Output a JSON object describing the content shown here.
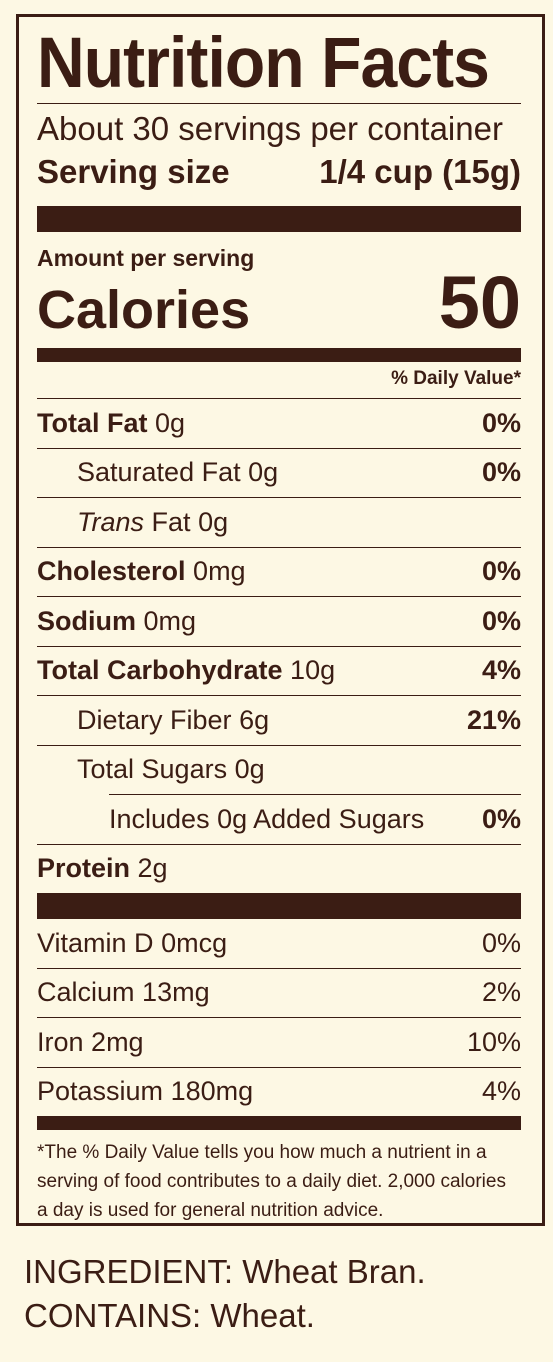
{
  "label": {
    "title": "Nutrition Facts",
    "servings_per_container": "About 30 servings per container",
    "serving_size_label": "Serving size",
    "serving_size_value": "1/4 cup (15g)",
    "amount_per_serving": "Amount per serving",
    "calories_label": "Calories",
    "calories_value": "50",
    "daily_value_header": "% Daily Value*",
    "nutrients": [
      {
        "name": "Total Fat",
        "amount": "0g",
        "dv": "0%"
      },
      {
        "name": "Saturated Fat",
        "amount": "0g",
        "dv": "0%"
      },
      {
        "name_italic": "Trans",
        "name": "Fat",
        "amount": "0g",
        "dv": ""
      },
      {
        "name": "Cholesterol",
        "amount": "0mg",
        "dv": "0%"
      },
      {
        "name": "Sodium",
        "amount": "0mg",
        "dv": "0%"
      },
      {
        "name": "Total Carbohydrate",
        "amount": "10g",
        "dv": "4%"
      },
      {
        "name": "Dietary Fiber",
        "amount": "6g",
        "dv": "21%"
      },
      {
        "name": "Total Sugars",
        "amount": "0g",
        "dv": ""
      },
      {
        "name": "Includes 0g Added Sugars",
        "amount": "",
        "dv": "0%"
      },
      {
        "name": "Protein",
        "amount": "2g",
        "dv": ""
      }
    ],
    "vitamins": [
      {
        "name": "Vitamin D",
        "amount": "0mcg",
        "dv": "0%"
      },
      {
        "name": "Calcium",
        "amount": "13mg",
        "dv": "2%"
      },
      {
        "name": "Iron",
        "amount": "2mg",
        "dv": "10%"
      },
      {
        "name": "Potassium",
        "amount": "180mg",
        "dv": "4%"
      }
    ],
    "footnote": "*The % Daily Value tells you how much a nutrient in a serving of food contributes to a daily diet. 2,000 calories a day is used for general nutrition advice."
  },
  "ingredients": {
    "line1": "INGREDIENT: Wheat Bran.",
    "line2": "CONTAINS: Wheat."
  },
  "colors": {
    "background": "#fdf8e4",
    "ink": "#3b1d14"
  }
}
